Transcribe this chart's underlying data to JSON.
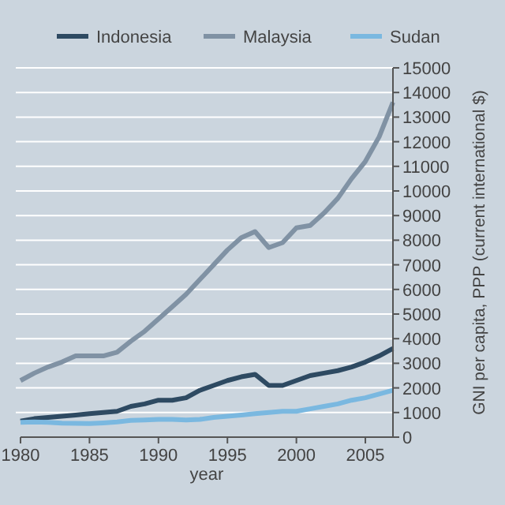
{
  "chart_data": {
    "type": "line",
    "xlabel": "year",
    "ylabel": "GNI per capita, PPP (current international $)",
    "x": [
      1980,
      1981,
      1982,
      1983,
      1984,
      1985,
      1986,
      1987,
      1988,
      1989,
      1990,
      1991,
      1992,
      1993,
      1994,
      1995,
      1996,
      1997,
      1998,
      1999,
      2000,
      2001,
      2002,
      2003,
      2004,
      2005,
      2006,
      2007
    ],
    "series": [
      {
        "name": "Indonesia",
        "color": "#2e4a62",
        "values": [
          650,
          750,
          800,
          850,
          900,
          950,
          1000,
          1050,
          1250,
          1350,
          1500,
          1500,
          1600,
          1900,
          2100,
          2300,
          2450,
          2550,
          2100,
          2100,
          2300,
          2500,
          2600,
          2700,
          2850,
          3050,
          3300,
          3600
        ]
      },
      {
        "name": "Malaysia",
        "color": "#8092a4",
        "values": [
          2300,
          2600,
          2850,
          3050,
          3300,
          3300,
          3300,
          3450,
          3900,
          4300,
          4800,
          5300,
          5800,
          6400,
          7000,
          7600,
          8100,
          8350,
          7700,
          7900,
          8500,
          8600,
          9100,
          9700,
          10500,
          11200,
          12200,
          13600
        ]
      },
      {
        "name": "Sudan",
        "color": "#7ab8e0",
        "values": [
          600,
          620,
          600,
          570,
          560,
          550,
          580,
          620,
          680,
          700,
          720,
          720,
          700,
          720,
          800,
          850,
          900,
          950,
          1000,
          1050,
          1050,
          1150,
          1250,
          1350,
          1500,
          1600,
          1750,
          1900
        ]
      }
    ],
    "xlim": [
      1980,
      2007
    ],
    "xticks": [
      1980,
      1985,
      1990,
      1995,
      2000,
      2005
    ],
    "ylim": [
      0,
      15000
    ],
    "yticks": [
      0,
      1000,
      2000,
      3000,
      4000,
      5000,
      6000,
      7000,
      8000,
      9000,
      10000,
      11000,
      12000,
      13000,
      14000,
      15000
    ],
    "grid": "y",
    "legend": "top",
    "line_style": "solid",
    "marker": "none"
  }
}
